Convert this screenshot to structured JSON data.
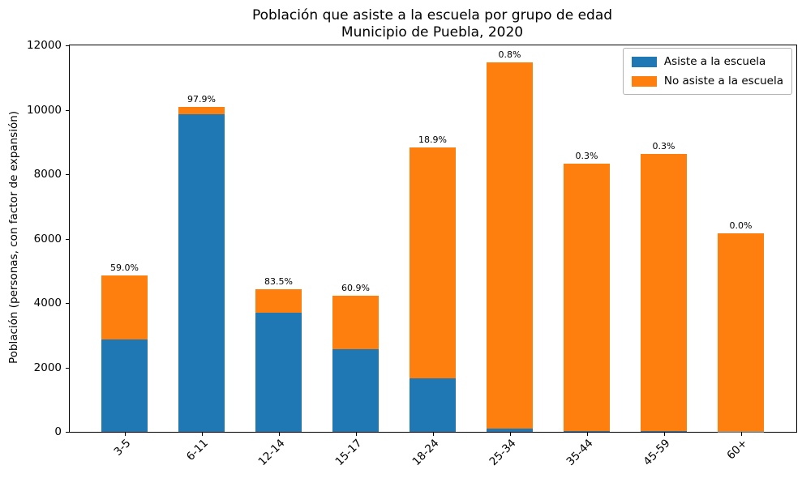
{
  "chart_data": {
    "type": "bar",
    "stacked": true,
    "title": "Población que asiste a la escuela por grupo de edad",
    "subtitle": "Municipio de Puebla, 2020",
    "ylabel": "Población (personas, con factor de expansión)",
    "xlabel": "",
    "categories": [
      "3-5",
      "6-11",
      "12-14",
      "15-17",
      "18-24",
      "25-34",
      "35-44",
      "45-59",
      "60+"
    ],
    "series": [
      {
        "name": "Asiste a la escuela",
        "color": "#1f77b4",
        "values": [
          2867,
          9868,
          3707,
          2577,
          1667,
          92,
          25,
          26,
          2
        ]
      },
      {
        "name": "No asiste a la escuela",
        "color": "#ff7f0e",
        "values": [
          1993,
          212,
          733,
          1654,
          7157,
          11379,
          8311,
          8597,
          6165
        ]
      }
    ],
    "totals": [
      4860,
      10080,
      4440,
      4231,
      8824,
      11471,
      8336,
      8623,
      6167
    ],
    "bar_labels": [
      "59.0%",
      "97.9%",
      "83.5%",
      "60.9%",
      "18.9%",
      "0.8%",
      "0.3%",
      "0.3%",
      "0.0%"
    ],
    "ylim": [
      0,
      12000
    ],
    "yticks": [
      0,
      2000,
      4000,
      6000,
      8000,
      10000,
      12000
    ],
    "legend_position": "upper right",
    "grid": false,
    "axis_color": "#000000",
    "background_color": "#ffffff"
  }
}
